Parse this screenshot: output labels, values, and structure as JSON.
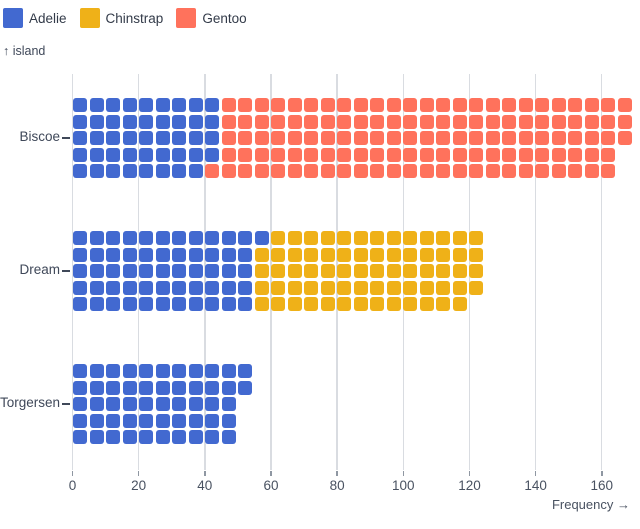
{
  "legend": {
    "items": [
      {
        "label": "Adelie",
        "color": "#4269d0"
      },
      {
        "label": "Chinstrap",
        "color": "#efb118"
      },
      {
        "label": "Gentoo",
        "color": "#ff725c"
      }
    ]
  },
  "y_axis": {
    "label": "↑ island"
  },
  "x_axis": {
    "label": "Frequency →",
    "ticks": [
      0,
      20,
      40,
      60,
      80,
      100,
      120,
      140,
      160
    ]
  },
  "chart_data": {
    "type": "bar",
    "subtype": "waffle-unit-chart-horizontal",
    "title": "",
    "xlabel": "Frequency →",
    "ylabel": "island",
    "categories": [
      "Biscoe",
      "Dream",
      "Torgersen"
    ],
    "series": [
      {
        "name": "Adelie",
        "color": "#4269d0",
        "values": [
          44,
          56,
          52
        ]
      },
      {
        "name": "Chinstrap",
        "color": "#efb118",
        "values": [
          0,
          68,
          0
        ]
      },
      {
        "name": "Gentoo",
        "color": "#ff725c",
        "values": [
          124,
          0,
          0
        ]
      }
    ],
    "totals": [
      168,
      124,
      52
    ],
    "unit_value": 1,
    "units_per_column": 5,
    "xlim": [
      0,
      172
    ],
    "grid": true,
    "legend_position": "top-left"
  },
  "colors": {
    "grid": "#d9dce1",
    "tick": "#8f97a2",
    "category_text": "#3f4859",
    "axis_text": "#495261",
    "legend_text": "#333b49"
  }
}
